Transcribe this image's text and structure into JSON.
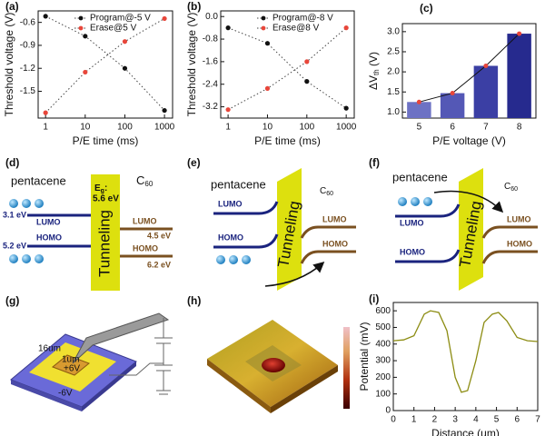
{
  "chart_data": [
    {
      "type": "scatter",
      "panel": "(a)",
      "xlabel": "P/E time (ms)",
      "ylabel": "Threshold voltage (V)",
      "xlog": true,
      "x": [
        1,
        10,
        100,
        1000
      ],
      "xlim": [
        0.65,
        1600
      ],
      "xticks": [
        1,
        10,
        100,
        1000
      ],
      "ylim": [
        -1.85,
        -0.45
      ],
      "yticks": [
        -0.6,
        -0.9,
        -1.2,
        -1.5
      ],
      "series": [
        {
          "name": "Program@-5 V",
          "color": "#111111",
          "values": [
            -0.52,
            -0.78,
            -1.2,
            -1.75
          ]
        },
        {
          "name": "Erase@5 V",
          "color": "#e8463a",
          "values": [
            -1.78,
            -1.25,
            -0.85,
            -0.55
          ]
        }
      ]
    },
    {
      "type": "scatter",
      "panel": "(b)",
      "xlabel": "P/E time (ms)",
      "ylabel": "Threshold voltage (V)",
      "xlog": true,
      "x": [
        1,
        10,
        100,
        1000
      ],
      "xlim": [
        0.65,
        1600
      ],
      "xticks": [
        1,
        10,
        100,
        1000
      ],
      "ylim": [
        -3.6,
        0.2
      ],
      "yticks": [
        {
          "value": 0,
          "label": "0.0"
        },
        -0.8,
        -1.6,
        -2.4,
        -3.2
      ],
      "series": [
        {
          "name": "Program@-8 V",
          "color": "#111111",
          "values": [
            -0.4,
            -0.95,
            -2.3,
            -3.25
          ]
        },
        {
          "name": "Erase@8 V",
          "color": "#e8463a",
          "values": [
            -3.3,
            -2.55,
            -1.6,
            -0.4
          ]
        }
      ]
    },
    {
      "type": "bar",
      "panel": "(c)",
      "xlabel": "P/E voltage (V)",
      "ylabel": {
        "main": "ΔV",
        "sub": "th",
        "unit": " (V)"
      },
      "categories": [
        "5",
        "6",
        "7",
        "8"
      ],
      "values": [
        1.25,
        1.47,
        2.15,
        2.95
      ],
      "colors": [
        "#6d72c4",
        "#5458b6",
        "#3b3fa4",
        "#262a8e"
      ],
      "line_color": "#111111",
      "marker_color": "#e8463a",
      "ylim": [
        0.85,
        3.2
      ],
      "yticks": [
        {
          "value": 1,
          "label": "1.0"
        },
        {
          "value": 1.5,
          "label": "1.5"
        },
        {
          "value": 2,
          "label": "2.0"
        },
        {
          "value": 2.5,
          "label": "2.5"
        },
        {
          "value": 3,
          "label": "3.0"
        }
      ]
    },
    {
      "type": "line",
      "panel": "(i)",
      "xlabel": "Distance (um)",
      "ylabel": "Potential (mV)",
      "x": [
        0,
        0.5,
        1,
        1.5,
        1.8,
        2.2,
        2.6,
        3,
        3.3,
        3.6,
        4,
        4.4,
        4.8,
        5.1,
        5.5,
        6,
        6.5,
        7
      ],
      "series": [
        {
          "name": "Potential",
          "color": "#8c8c12",
          "values": [
            420,
            425,
            450,
            580,
            600,
            590,
            480,
            200,
            110,
            120,
            300,
            530,
            580,
            590,
            540,
            440,
            420,
            415
          ]
        }
      ],
      "xlim": [
        0,
        7
      ],
      "xticks": [
        0,
        1,
        2,
        3,
        4,
        5,
        6,
        7
      ],
      "ylim": [
        0,
        650
      ],
      "yticks": [
        0,
        100,
        200,
        300,
        400,
        500,
        600
      ]
    }
  ],
  "diagrams": [
    {
      "panel": "(d)",
      "left": "pentacene",
      "right": "C",
      "right_sub": "60",
      "barrier": "Tunneling",
      "gap": "E",
      "gap_sub": "g",
      "gap_colon": ":",
      "gap_value": "5.6 eV",
      "left_lumo": "LUMO",
      "left_homo": "HOMO",
      "right_lumo": "LUMO",
      "right_homo": "HOMO",
      "left_lumo_e": "3.1 eV",
      "left_homo_e": "5.2 eV",
      "right_lumo_e": "4.5 eV",
      "right_homo_e": "6.2 eV"
    },
    {
      "panel": "(e)",
      "left": "pentacene",
      "right": "C",
      "right_sub": "60",
      "barrier": "Tunneling",
      "left_lumo": "LUMO",
      "left_homo": "HOMO",
      "right_lumo": "LUMO",
      "right_homo": "HOMO"
    },
    {
      "panel": "(f)",
      "left": "pentacene",
      "right": "C",
      "right_sub": "60",
      "barrier": "Tunneling",
      "left_lumo": "LUMO",
      "left_homo": "HOMO",
      "right_lumo": "LUMO",
      "right_homo": "HOMO"
    },
    {
      "panel": "(g)",
      "outer": "16um",
      "inner": "1um",
      "inner_bias": "+6V",
      "outer_bias": "-6V"
    },
    {
      "panel": "(h)"
    }
  ]
}
